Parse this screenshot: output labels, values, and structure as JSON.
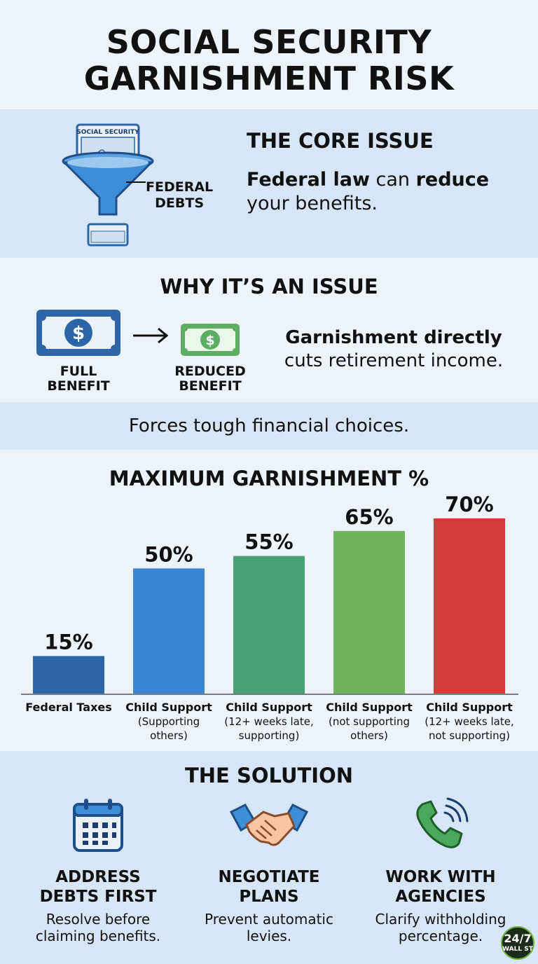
{
  "title": {
    "line1": "SOCIAL SECURITY",
    "line2": "GARNISHMENT RISK"
  },
  "core": {
    "heading": "THE CORE ISSUE",
    "text_bold1": "Federal law",
    "text_plain1": " can ",
    "text_bold2": "reduce",
    "text_plain2": " your benefits.",
    "card_label": "SOCIAL SECURITY",
    "funnel_label_line1": "FEDERAL",
    "funnel_label_line2": "DEBTS"
  },
  "why": {
    "heading": "WHY IT’S AN ISSUE",
    "full_label_line1": "FULL",
    "full_label_line2": "BENEFIT",
    "reduced_label_line1": "REDUCED",
    "reduced_label_line2": "BENEFIT",
    "text_bold": "Garnishment directly",
    "text_plain": "cuts retirement income."
  },
  "forces": "Forces tough financial choices.",
  "chart_data": {
    "type": "bar",
    "title": "MAXIMUM GARNISHMENT %",
    "categories": [
      [
        "Federal Taxes"
      ],
      [
        "Child Support",
        "(Supporting",
        "others)"
      ],
      [
        "Child Support",
        "(12+ weeks late,",
        "supporting)"
      ],
      [
        "Child Support",
        "(not supporting",
        "others)"
      ],
      [
        "Child Support",
        "(12+ weeks late,",
        "not supporting)"
      ]
    ],
    "values": [
      15,
      50,
      55,
      65,
      70
    ],
    "value_labels": [
      "15%",
      "50%",
      "55%",
      "65%",
      "70%"
    ],
    "colors": [
      "#2c65a8",
      "#3987d2",
      "#46a176",
      "#6fb35f",
      "#d23d3b"
    ],
    "ylim": [
      0,
      70
    ]
  },
  "solution": {
    "heading": "THE SOLUTION",
    "items": [
      {
        "icon": "calendar-icon",
        "title_line1": "ADDRESS",
        "title_line2": "DEBTS FIRST",
        "desc_line1": "Resolve before",
        "desc_line2": "claiming benefits."
      },
      {
        "icon": "handshake-icon",
        "title_line1": "NEGOTIATE",
        "title_line2": "PLANS",
        "desc_line1": "Prevent automatic",
        "desc_line2": "levies."
      },
      {
        "icon": "phone-icon",
        "title_line1": "WORK WITH",
        "title_line2": "AGENCIES",
        "desc_line1": "Clarify withholding",
        "desc_line2": "percentage."
      }
    ]
  },
  "logo": {
    "number": "24/7",
    "word": "WALL ST"
  }
}
